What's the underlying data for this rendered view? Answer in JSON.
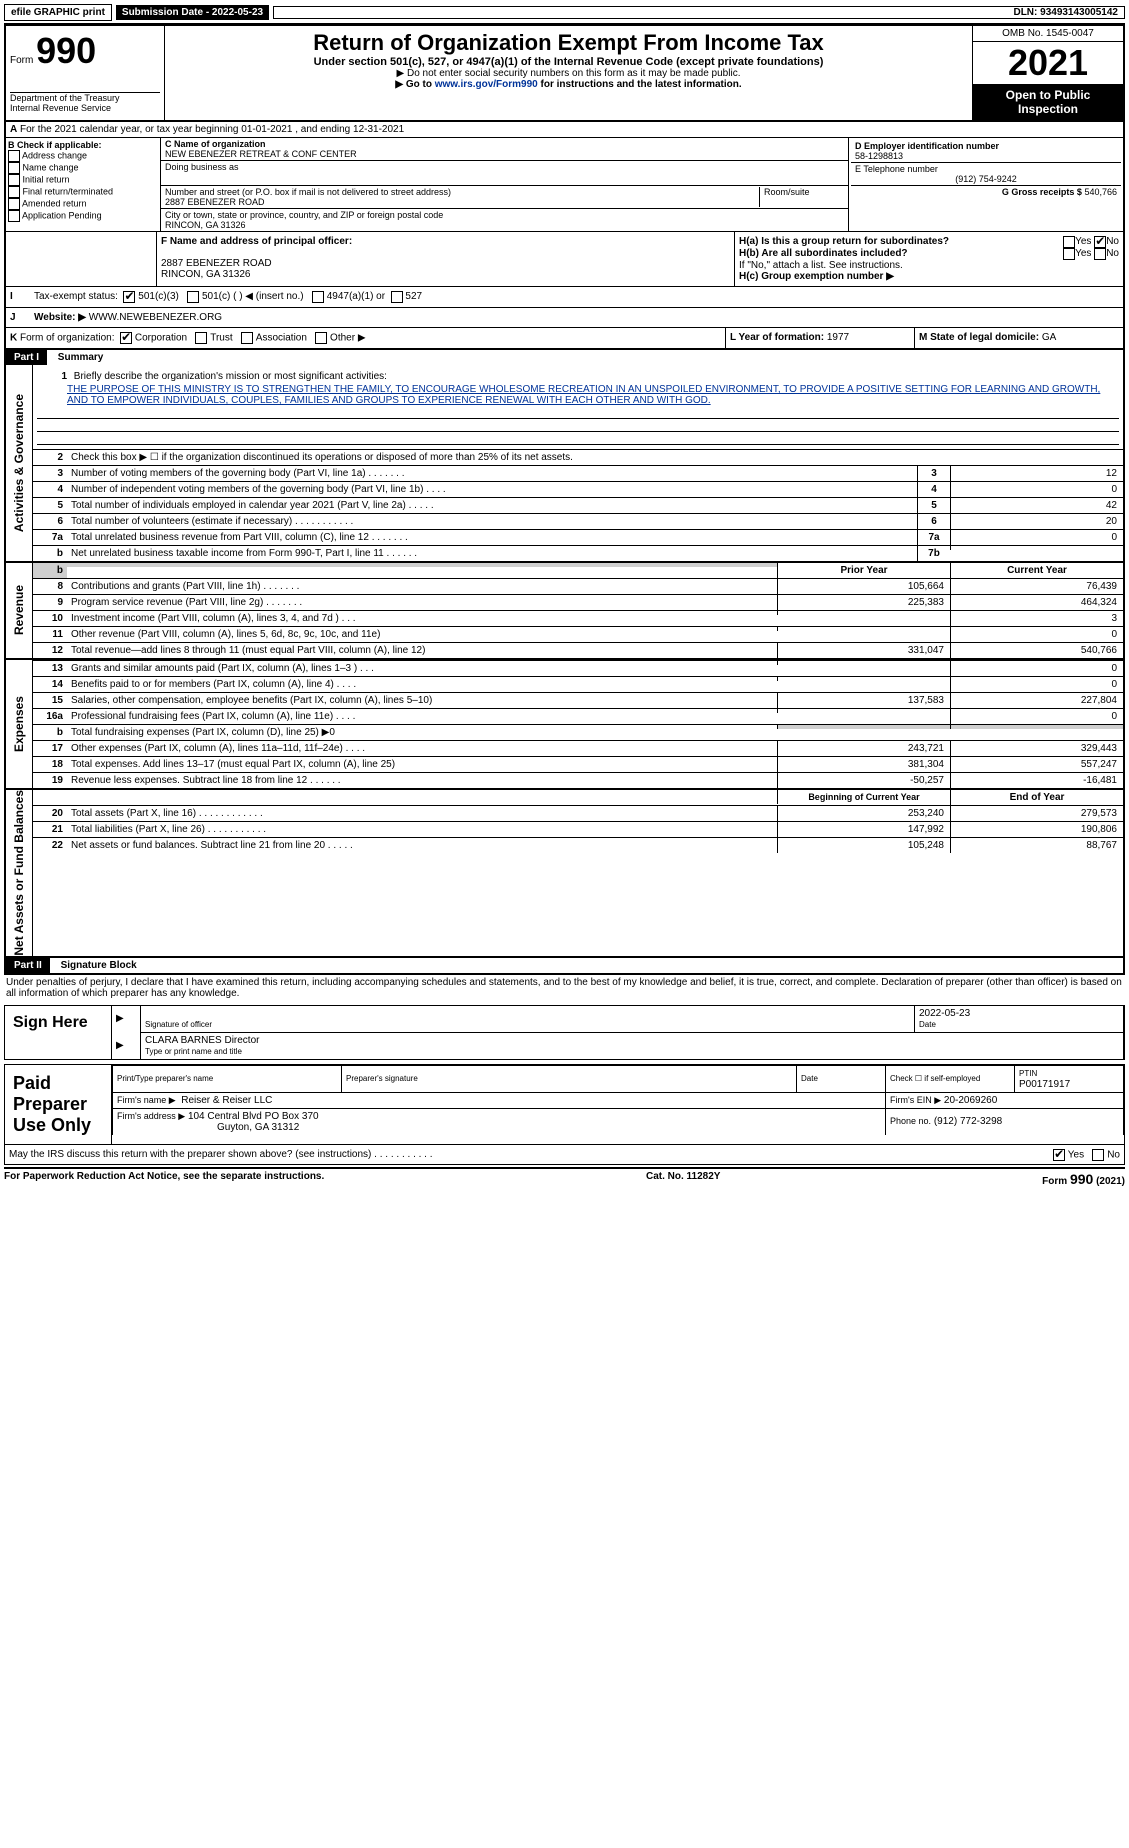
{
  "topbar": {
    "efile": "efile GRAPHIC print",
    "submission": "Submission Date - 2022-05-23",
    "dln": "DLN: 93493143005142"
  },
  "header": {
    "form_word": "Form",
    "form_no": "990",
    "title": "Return of Organization Exempt From Income Tax",
    "subtitle": "Under section 501(c), 527, or 4947(a)(1) of the Internal Revenue Code (except private foundations)",
    "note1": "▶ Do not enter social security numbers on this form as it may be made public.",
    "note2_pre": "▶ Go to ",
    "note2_link": "www.irs.gov/Form990",
    "note2_post": " for instructions and the latest information.",
    "dept": "Department of the Treasury",
    "irs": "Internal Revenue Service",
    "omb": "OMB No. 1545-0047",
    "year": "2021",
    "open": "Open to Public Inspection"
  },
  "A": {
    "text": "For the 2021 calendar year, or tax year beginning 01-01-2021     , and ending 12-31-2021"
  },
  "B": {
    "label": "B Check if applicable:",
    "items": [
      "Address change",
      "Name change",
      "Initial return",
      "Final return/terminated",
      "Amended return",
      "Application Pending"
    ]
  },
  "C": {
    "name_label": "C Name of organization",
    "name": "NEW EBENEZER RETREAT & CONF CENTER",
    "dba_label": "Doing business as",
    "addr_label": "Number and street (or P.O. box if mail is not delivered to street address)",
    "room_label": "Room/suite",
    "addr": "2887 EBENEZER ROAD",
    "city_label": "City or town, state or province, country, and ZIP or foreign postal code",
    "city": "RINCON, GA  31326"
  },
  "D": {
    "label": "D Employer identification number",
    "val": "58-1298813"
  },
  "E": {
    "label": "E Telephone number",
    "val": "(912) 754-9242"
  },
  "G": {
    "label": "G Gross receipts $",
    "val": "540,766"
  },
  "F": {
    "label": "F  Name and address of principal officer:",
    "addr1": "2887 EBENEZER ROAD",
    "addr2": "RINCON, GA  31326"
  },
  "H": {
    "a": "H(a)  Is this a group return for subordinates?",
    "b": "H(b)  Are all subordinates included?",
    "b_note": "If \"No,\" attach a list. See instructions.",
    "c": "H(c)  Group exemption number ▶",
    "yes": "Yes",
    "no": "No"
  },
  "I": {
    "label": "Tax-exempt status:",
    "c3": "501(c)(3)",
    "c": "501(c) (  ) ◀ (insert no.)",
    "a1": "4947(a)(1) or",
    "527": "527"
  },
  "J": {
    "label": "Website: ▶",
    "val": "WWW.NEWEBENEZER.ORG"
  },
  "K": {
    "label": "Form of organization:",
    "corp": "Corporation",
    "trust": "Trust",
    "assoc": "Association",
    "other": "Other ▶"
  },
  "L": {
    "label": "L Year of formation:",
    "val": "1977"
  },
  "M": {
    "label": "M State of legal domicile:",
    "val": "GA"
  },
  "part1": {
    "header": "Part I",
    "title": "Summary",
    "line1_label": "Briefly describe the organization's mission or most significant activities:",
    "mission": "THE PURPOSE OF THIS MINISTRY IS TO STRENGTHEN THE FAMILY, TO ENCOURAGE WHOLESOME RECREATION IN AN UNSPOILED ENVIRONMENT, TO PROVIDE A POSITIVE SETTING FOR LEARNING AND GROWTH, AND TO EMPOWER INDIVIDUALS, COUPLES, FAMILIES AND GROUPS TO EXPERIENCE RENEWAL WITH EACH OTHER AND WITH GOD.",
    "line2": "Check this box ▶ ☐  if the organization discontinued its operations or disposed of more than 25% of its net assets.",
    "prior": "Prior Year",
    "current": "Current Year",
    "begin": "Beginning of Current Year",
    "end": "End of Year"
  },
  "gov_lines": [
    {
      "n": "3",
      "d": "Number of voting members of the governing body (Part VI, line 1a)   .    .    .    .    .    .    .",
      "box": "3",
      "v": "12"
    },
    {
      "n": "4",
      "d": "Number of independent voting members of the governing body (Part VI, line 1b)   .    .    .    .",
      "box": "4",
      "v": "0"
    },
    {
      "n": "5",
      "d": "Total number of individuals employed in calendar year 2021 (Part V, line 2a)   .    .    .    .    .",
      "box": "5",
      "v": "42"
    },
    {
      "n": "6",
      "d": "Total number of volunteers (estimate if necessary)    .    .    .    .    .    .    .    .    .    .    .",
      "box": "6",
      "v": "20"
    },
    {
      "n": "7a",
      "d": "Total unrelated business revenue from Part VIII, column (C), line 12   .    .    .    .    .    .    .",
      "box": "7a",
      "v": "0"
    },
    {
      "n": "b",
      "d": "Net unrelated business taxable income from Form 990-T, Part I, line 11   .    .    .    .    .    .",
      "box": "7b",
      "v": ""
    }
  ],
  "rev_lines": [
    {
      "n": "8",
      "d": "Contributions and grants (Part VIII, line 1h)   .    .    .    .    .    .    .",
      "p": "105,664",
      "c": "76,439"
    },
    {
      "n": "9",
      "d": "Program service revenue (Part VIII, line 2g)   .    .    .    .    .    .    .",
      "p": "225,383",
      "c": "464,324"
    },
    {
      "n": "10",
      "d": "Investment income (Part VIII, column (A), lines 3, 4, and 7d )    .    .    .",
      "p": "",
      "c": "3"
    },
    {
      "n": "11",
      "d": "Other revenue (Part VIII, column (A), lines 5, 6d, 8c, 9c, 10c, and 11e)",
      "p": "",
      "c": "0"
    },
    {
      "n": "12",
      "d": "Total revenue—add lines 8 through 11 (must equal Part VIII, column (A), line 12)",
      "p": "331,047",
      "c": "540,766"
    }
  ],
  "exp_lines": [
    {
      "n": "13",
      "d": "Grants and similar amounts paid (Part IX, column (A), lines 1–3 )   .    .    .",
      "p": "",
      "c": "0"
    },
    {
      "n": "14",
      "d": "Benefits paid to or for members (Part IX, column (A), line 4)   .    .    .    .",
      "p": "",
      "c": "0"
    },
    {
      "n": "15",
      "d": "Salaries, other compensation, employee benefits (Part IX, column (A), lines 5–10)",
      "p": "137,583",
      "c": "227,804"
    },
    {
      "n": "16a",
      "d": "Professional fundraising fees (Part IX, column (A), line 11e)   .    .    .    .",
      "p": "",
      "c": "0"
    },
    {
      "n": "b",
      "d": "Total fundraising expenses (Part IX, column (D), line 25) ▶0",
      "p": "GREY",
      "c": "GREY"
    },
    {
      "n": "17",
      "d": "Other expenses (Part IX, column (A), lines 11a–11d, 11f–24e)    .    .    .    .",
      "p": "243,721",
      "c": "329,443"
    },
    {
      "n": "18",
      "d": "Total expenses. Add lines 13–17 (must equal Part IX, column (A), line 25)",
      "p": "381,304",
      "c": "557,247"
    },
    {
      "n": "19",
      "d": "Revenue less expenses. Subtract line 18 from line 12   .    .    .    .    .    .",
      "p": "-50,257",
      "c": "-16,481"
    }
  ],
  "net_lines": [
    {
      "n": "20",
      "d": "Total assets (Part X, line 16)   .    .    .    .    .    .    .    .    .    .    .    .",
      "p": "253,240",
      "c": "279,573"
    },
    {
      "n": "21",
      "d": "Total liabilities (Part X, line 26)   .    .    .    .    .    .    .    .    .    .    .",
      "p": "147,992",
      "c": "190,806"
    },
    {
      "n": "22",
      "d": "Net assets or fund balances. Subtract line 21 from line 20   .    .    .    .    .",
      "p": "105,248",
      "c": "88,767"
    }
  ],
  "part2": {
    "header": "Part II",
    "title": "Signature Block",
    "perjury": "Under penalties of perjury, I declare that I have examined this return, including accompanying schedules and statements, and to the best of my knowledge and belief, it is true, correct, and complete. Declaration of preparer (other than officer) is based on all information of which preparer has any knowledge."
  },
  "sign": {
    "here": "Sign Here",
    "sig_officer": "Signature of officer",
    "date": "Date",
    "date_val": "2022-05-23",
    "name": "CLARA BARNES  Director",
    "name_label": "Type or print name and title"
  },
  "paid": {
    "title": "Paid Preparer Use Only",
    "print_label": "Print/Type preparer's name",
    "sig_label": "Preparer's signature",
    "date_label": "Date",
    "check_label": "Check ☐ if self-employed",
    "ptin_label": "PTIN",
    "ptin": "P00171917",
    "firm_name_label": "Firm's name    ▶",
    "firm_name": "Reiser & Reiser LLC",
    "firm_ein_label": "Firm's EIN ▶",
    "firm_ein": "20-2069260",
    "firm_addr_label": "Firm's address ▶",
    "firm_addr1": "104 Central Blvd PO Box 370",
    "firm_addr2": "Guyton, GA  31312",
    "phone_label": "Phone no.",
    "phone": "(912) 772-3298"
  },
  "discuss": {
    "q": "May the IRS discuss this return with the preparer shown above? (see instructions)    .    .    .    .    .    .    .    .    .    .    .",
    "yes": "Yes",
    "no": "No"
  },
  "footer": {
    "left": "For Paperwork Reduction Act Notice, see the separate instructions.",
    "mid": "Cat. No. 11282Y",
    "right_form": "Form",
    "right_no": "990",
    "right_yr": "(2021)"
  },
  "side": {
    "gov": "Activities & Governance",
    "rev": "Revenue",
    "exp": "Expenses",
    "net": "Net Assets or Fund Balances"
  }
}
